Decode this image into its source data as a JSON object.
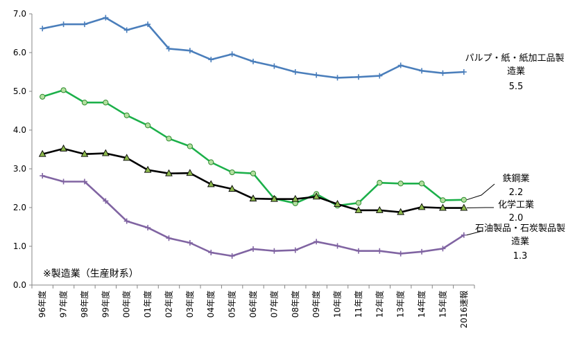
{
  "chart_data": {
    "type": "line",
    "note": "※製造業（生産財系）",
    "categories": [
      "96年度",
      "97年度",
      "98年度",
      "99年度",
      "00年度",
      "01年度",
      "02年度",
      "03年度",
      "04年度",
      "05年度",
      "06年度",
      "07年度",
      "08年度",
      "09年度",
      "10年度",
      "11年度",
      "12年度",
      "13年度",
      "14年度",
      "15年度",
      "2016速報"
    ],
    "yticks": [
      "0.0",
      "1.0",
      "2.0",
      "3.0",
      "4.0",
      "5.0",
      "6.0",
      "7.0"
    ],
    "ylim": [
      0,
      7
    ],
    "grid": false,
    "series": [
      {
        "name_lines": [
          "パルプ・紙・紙加工品製",
          "造業"
        ],
        "value_label": "5.5",
        "color": "#4a7ebb",
        "marker": "plus",
        "values": [
          6.62,
          6.73,
          6.73,
          6.9,
          6.58,
          6.73,
          6.1,
          6.05,
          5.82,
          5.96,
          5.77,
          5.65,
          5.5,
          5.42,
          5.35,
          5.37,
          5.4,
          5.67,
          5.53,
          5.47,
          5.5
        ]
      },
      {
        "name_lines": [
          "鉄鋼業"
        ],
        "value_label": "2.2",
        "color": "#1cb04a",
        "marker": "circle",
        "values": [
          4.86,
          5.03,
          4.71,
          4.71,
          4.38,
          4.12,
          3.78,
          3.58,
          3.17,
          2.91,
          2.88,
          2.23,
          2.11,
          2.35,
          2.05,
          2.12,
          2.64,
          2.62,
          2.62,
          2.19,
          2.2
        ]
      },
      {
        "name_lines": [
          "化学工業"
        ],
        "value_label": "2.0",
        "color": "#000000",
        "marker": "triangle",
        "values": [
          3.38,
          3.52,
          3.38,
          3.4,
          3.28,
          2.97,
          2.88,
          2.89,
          2.6,
          2.48,
          2.23,
          2.22,
          2.22,
          2.28,
          2.09,
          1.93,
          1.93,
          1.88,
          2.01,
          1.99,
          1.99
        ]
      },
      {
        "name_lines": [
          "石油製品・石炭製品製",
          "造業"
        ],
        "value_label": "1.3",
        "color": "#8064a2",
        "marker": "plus",
        "values": [
          2.82,
          2.67,
          2.67,
          2.17,
          1.65,
          1.48,
          1.21,
          1.09,
          0.84,
          0.75,
          0.93,
          0.88,
          0.9,
          1.12,
          1.01,
          0.88,
          0.88,
          0.81,
          0.86,
          0.94,
          1.29
        ]
      }
    ]
  }
}
